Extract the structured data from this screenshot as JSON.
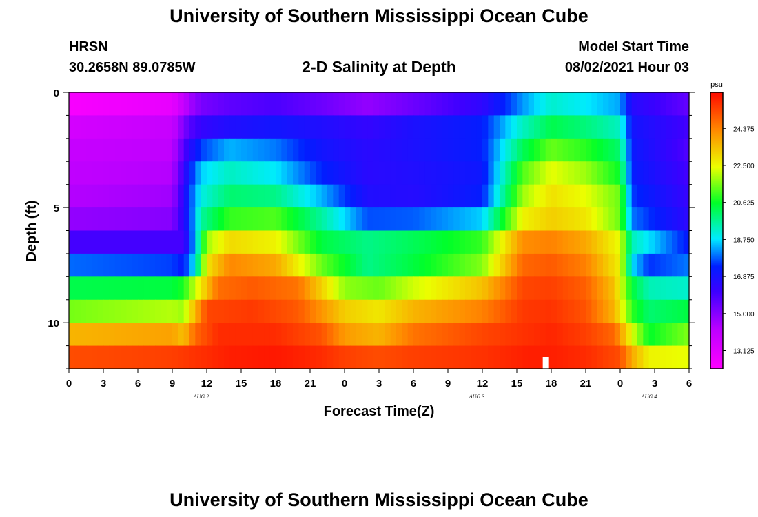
{
  "page": {
    "title_top": "University of Southern Mississippi Ocean Cube",
    "title_bottom": "University of Southern Mississippi Ocean Cube",
    "station": "HRSN",
    "coords": "30.2658N  89.0785W",
    "plot_title": "2-D Salinity at Depth",
    "model_start_label": "Model Start Time",
    "model_start_value": "08/02/2021 Hour 03"
  },
  "chart_data": {
    "type": "heatmap",
    "title": "2-D Salinity at Depth",
    "xlabel": "Forecast Time(Z)",
    "ylabel": "Depth (ft)",
    "xlim": [
      0,
      54
    ],
    "ylim": [
      12,
      0
    ],
    "x_ticks": [
      0,
      3,
      6,
      9,
      12,
      15,
      18,
      21,
      24,
      27,
      30,
      33,
      36,
      39,
      42,
      45,
      48,
      51,
      54
    ],
    "x_tick_labels": [
      "0",
      "3",
      "6",
      "9",
      "12",
      "15",
      "18",
      "21",
      "0",
      "3",
      "6",
      "9",
      "12",
      "15",
      "18",
      "21",
      "0",
      "3",
      "6"
    ],
    "y_ticks": [
      0,
      5,
      10
    ],
    "y_tick_labels": [
      "0",
      "5",
      "10"
    ],
    "date_labels": [
      {
        "x": 12,
        "label": "AUG 2"
      },
      {
        "x": 36,
        "label": "AUG 3"
      },
      {
        "x": 51,
        "label": "AUG 4"
      }
    ],
    "marker_x": 41.5,
    "colorbar": {
      "unit": "psu",
      "min": 12.2,
      "max": 26.2,
      "ticks": [
        13.125,
        15.0,
        16.875,
        18.75,
        20.625,
        22.5,
        24.375
      ],
      "tick_labels": [
        "13.125",
        "15.000",
        "16.875",
        "18.750",
        "20.625",
        "22.500",
        "24.375"
      ]
    },
    "layers": [
      {
        "depth": 0.5,
        "keys": [
          [
            0,
            12.4
          ],
          [
            9,
            12.9
          ],
          [
            10.5,
            14.5
          ],
          [
            11.5,
            15.2
          ],
          [
            14,
            15.6
          ],
          [
            18,
            15.9
          ],
          [
            22,
            15.4
          ],
          [
            26,
            14.8
          ],
          [
            30,
            15.4
          ],
          [
            36,
            16.4
          ],
          [
            39.5,
            18.2
          ],
          [
            42,
            19.2
          ],
          [
            45,
            18.8
          ],
          [
            48,
            18.3
          ],
          [
            49,
            16.6
          ],
          [
            54,
            15.5
          ]
        ]
      },
      {
        "depth": 1.5,
        "keys": [
          [
            0,
            13.5
          ],
          [
            9,
            13.9
          ],
          [
            10.5,
            15.7
          ],
          [
            11.5,
            16.3
          ],
          [
            14,
            16.7
          ],
          [
            18,
            17.0
          ],
          [
            22,
            16.7
          ],
          [
            26,
            16.3
          ],
          [
            30,
            16.8
          ],
          [
            36,
            17.3
          ],
          [
            39.5,
            19.3
          ],
          [
            42,
            20.3
          ],
          [
            45,
            19.9
          ],
          [
            48,
            19.3
          ],
          [
            49,
            17.0
          ],
          [
            54,
            16.0
          ]
        ]
      },
      {
        "depth": 2.5,
        "keys": [
          [
            0,
            13.9
          ],
          [
            9,
            14.1
          ],
          [
            10.5,
            16.5
          ],
          [
            11.5,
            17.6
          ],
          [
            14,
            18.4
          ],
          [
            18,
            18.0
          ],
          [
            22,
            17.0
          ],
          [
            26,
            16.5
          ],
          [
            30,
            16.8
          ],
          [
            36,
            17.3
          ],
          [
            39.5,
            20.2
          ],
          [
            42,
            21.4
          ],
          [
            45,
            20.9
          ],
          [
            48,
            20.0
          ],
          [
            49,
            17.2
          ],
          [
            54,
            15.8
          ]
        ]
      },
      {
        "depth": 3.5,
        "keys": [
          [
            0,
            14.1
          ],
          [
            9,
            14.3
          ],
          [
            10.5,
            17.2
          ],
          [
            11.5,
            18.6
          ],
          [
            14,
            19.3
          ],
          [
            18,
            18.8
          ],
          [
            22,
            17.4
          ],
          [
            26,
            16.5
          ],
          [
            30,
            16.7
          ],
          [
            36,
            17.1
          ],
          [
            39.5,
            21.2
          ],
          [
            42,
            22.4
          ],
          [
            45,
            21.8
          ],
          [
            48,
            20.6
          ],
          [
            49,
            17.3
          ],
          [
            54,
            16.0
          ]
        ]
      },
      {
        "depth": 4.5,
        "keys": [
          [
            0,
            14.3
          ],
          [
            9,
            14.6
          ],
          [
            10.5,
            17.5
          ],
          [
            11.5,
            19.0
          ],
          [
            14,
            20.0
          ],
          [
            18,
            19.8
          ],
          [
            22,
            18.4
          ],
          [
            26,
            16.7
          ],
          [
            30,
            16.6
          ],
          [
            36,
            17.3
          ],
          [
            39.5,
            21.8
          ],
          [
            42,
            22.9
          ],
          [
            45,
            22.4
          ],
          [
            48,
            21.4
          ],
          [
            49,
            17.6
          ],
          [
            54,
            16.2
          ]
        ]
      },
      {
        "depth": 5.5,
        "keys": [
          [
            0,
            14.8
          ],
          [
            9,
            15.0
          ],
          [
            10.5,
            17.4
          ],
          [
            11.5,
            19.6
          ],
          [
            14,
            21.0
          ],
          [
            18,
            21.2
          ],
          [
            22,
            19.6
          ],
          [
            26,
            17.7
          ],
          [
            30,
            17.8
          ],
          [
            36,
            18.6
          ],
          [
            39.5,
            22.6
          ],
          [
            42,
            23.2
          ],
          [
            45,
            22.8
          ],
          [
            48,
            21.4
          ],
          [
            49,
            18.0
          ],
          [
            54,
            16.4
          ]
        ]
      },
      {
        "depth": 6.5,
        "keys": [
          [
            0,
            16.0
          ],
          [
            9,
            16.0
          ],
          [
            10,
            16.0
          ],
          [
            11,
            18.5
          ],
          [
            12,
            21.8
          ],
          [
            14,
            23.0
          ],
          [
            18,
            22.6
          ],
          [
            22,
            20.4
          ],
          [
            26,
            19.8
          ],
          [
            30,
            20.2
          ],
          [
            36,
            21.0
          ],
          [
            39.5,
            24.2
          ],
          [
            42,
            24.4
          ],
          [
            45,
            23.8
          ],
          [
            48,
            22.4
          ],
          [
            49,
            19.4
          ],
          [
            54,
            17.2
          ]
        ]
      },
      {
        "depth": 7.5,
        "keys": [
          [
            0,
            17.9
          ],
          [
            9,
            17.6
          ],
          [
            10,
            17.2
          ],
          [
            11,
            18.9
          ],
          [
            12,
            22.8
          ],
          [
            14,
            24.3
          ],
          [
            18,
            23.8
          ],
          [
            22,
            21.4
          ],
          [
            26,
            19.8
          ],
          [
            30,
            20.4
          ],
          [
            36,
            21.6
          ],
          [
            39.5,
            24.8
          ],
          [
            42,
            25.0
          ],
          [
            45,
            24.4
          ],
          [
            48,
            22.6
          ],
          [
            49,
            18.8
          ],
          [
            50.5,
            17.5
          ],
          [
            54,
            18.0
          ]
        ]
      },
      {
        "depth": 8.5,
        "keys": [
          [
            0,
            20.3
          ],
          [
            9,
            20.4
          ],
          [
            10,
            20.8
          ],
          [
            11.5,
            22.8
          ],
          [
            13,
            24.7
          ],
          [
            16,
            25.0
          ],
          [
            20,
            24.6
          ],
          [
            24,
            21.7
          ],
          [
            27,
            21.4
          ],
          [
            30,
            22.2
          ],
          [
            36,
            23.4
          ],
          [
            39.5,
            25.3
          ],
          [
            42,
            25.4
          ],
          [
            45,
            24.9
          ],
          [
            47.5,
            23.4
          ],
          [
            49,
            20.5
          ],
          [
            50.5,
            19.4
          ],
          [
            54,
            19.2
          ]
        ]
      },
      {
        "depth": 9.5,
        "keys": [
          [
            0,
            21.5
          ],
          [
            9,
            22.0
          ],
          [
            10,
            21.8
          ],
          [
            11,
            23.6
          ],
          [
            12,
            25.3
          ],
          [
            16,
            25.5
          ],
          [
            20,
            25.0
          ],
          [
            24,
            23.2
          ],
          [
            27,
            22.8
          ],
          [
            30,
            23.6
          ],
          [
            36,
            24.4
          ],
          [
            39.5,
            25.5
          ],
          [
            42,
            25.6
          ],
          [
            45,
            25.1
          ],
          [
            47.5,
            23.6
          ],
          [
            49,
            21.0
          ],
          [
            50.5,
            20.0
          ],
          [
            54,
            20.4
          ]
        ]
      },
      {
        "depth": 10.5,
        "keys": [
          [
            0,
            23.6
          ],
          [
            9,
            23.9
          ],
          [
            10,
            23.4
          ],
          [
            11,
            24.8
          ],
          [
            13,
            25.7
          ],
          [
            18,
            25.7
          ],
          [
            22,
            25.1
          ],
          [
            24,
            24.0
          ],
          [
            27,
            23.6
          ],
          [
            30,
            24.6
          ],
          [
            36,
            25.3
          ],
          [
            39.5,
            25.6
          ],
          [
            42,
            25.8
          ],
          [
            45,
            25.4
          ],
          [
            47.5,
            24.8
          ],
          [
            49,
            22.4
          ],
          [
            50.5,
            20.6
          ],
          [
            54,
            21.6
          ]
        ]
      },
      {
        "depth": 11.5,
        "keys": [
          [
            0,
            25.2
          ],
          [
            9,
            25.4
          ],
          [
            11,
            25.6
          ],
          [
            14,
            25.9
          ],
          [
            18,
            26.0
          ],
          [
            22,
            25.7
          ],
          [
            24,
            25.4
          ],
          [
            27,
            25.2
          ],
          [
            30,
            25.4
          ],
          [
            36,
            25.6
          ],
          [
            40,
            25.9
          ],
          [
            42,
            25.9
          ],
          [
            45,
            25.7
          ],
          [
            48,
            25.2
          ],
          [
            49,
            23.8
          ],
          [
            50.5,
            22.6
          ],
          [
            54,
            22.4
          ]
        ]
      }
    ]
  }
}
